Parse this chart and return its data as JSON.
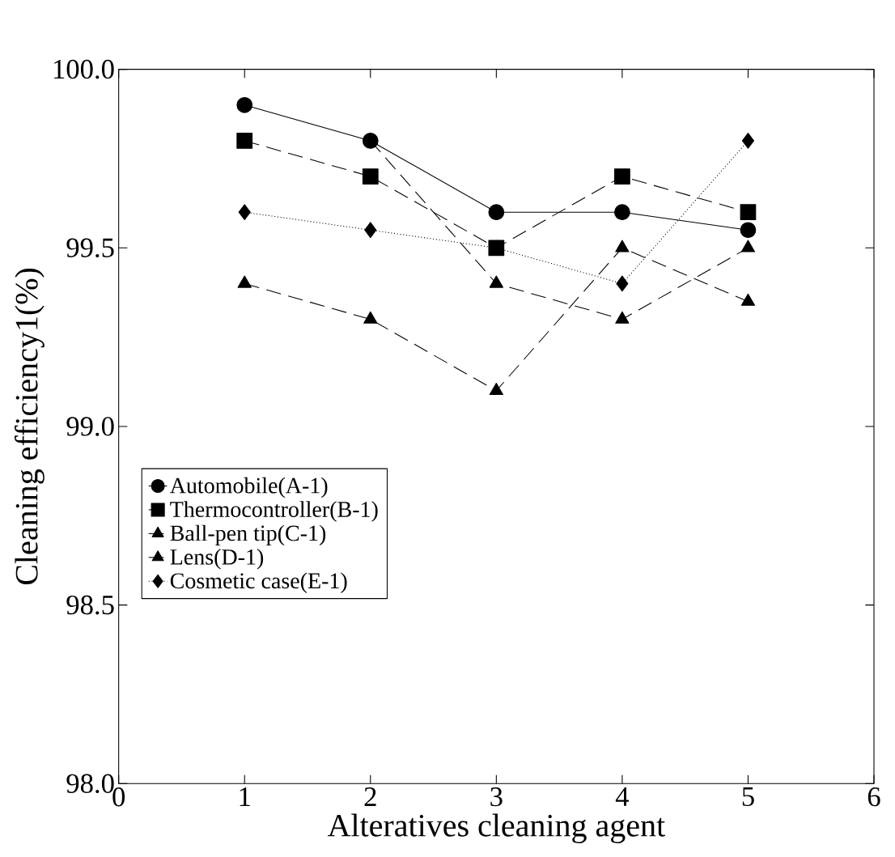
{
  "chart_data": {
    "type": "line",
    "xlabel": "Alteratives cleaning agent",
    "ylabel": "Cleaning efficiency1(%)",
    "x": [
      1,
      2,
      3,
      4,
      5
    ],
    "xlim": [
      0,
      6
    ],
    "xticks": [
      0,
      1,
      2,
      3,
      4,
      5,
      6
    ],
    "ylim": [
      98,
      100
    ],
    "yticks": [
      {
        "value": 98,
        "label": "98.0"
      },
      {
        "value": 98.5,
        "label": "98.5"
      },
      {
        "value": 99,
        "label": "99.0"
      },
      {
        "value": 99.5,
        "label": "99.5"
      },
      {
        "value": 100,
        "label": "100.0"
      }
    ],
    "grid": false,
    "legend": "left",
    "series": [
      {
        "name": "Automobile(A-1)",
        "color": "#000000",
        "values": [
          99.9,
          99.8,
          99.6,
          99.6,
          99.55
        ],
        "marker": "circle",
        "line_style": "solid"
      },
      {
        "name": "Thermocontroller(B-1)",
        "color": "#000000",
        "values": [
          99.8,
          99.7,
          99.5,
          99.7,
          99.6
        ],
        "marker": "square",
        "line_style": "dashed"
      },
      {
        "name": "Ball-pen tip(C-1)",
        "color": "#000000",
        "values": [
          null,
          99.8,
          99.4,
          99.3,
          99.5
        ],
        "marker": "triangle",
        "line_style": "dashed"
      },
      {
        "name": "Lens(D-1)",
        "color": "#000000",
        "values": [
          99.4,
          99.3,
          99.1,
          99.5,
          99.35
        ],
        "marker": "triangle",
        "line_style": "dashed"
      },
      {
        "name": "Cosmetic case(E-1)",
        "color": "#000000",
        "values": [
          99.6,
          99.55,
          99.5,
          99.4,
          99.8
        ],
        "marker": "diamond",
        "line_style": "dotted"
      }
    ]
  }
}
